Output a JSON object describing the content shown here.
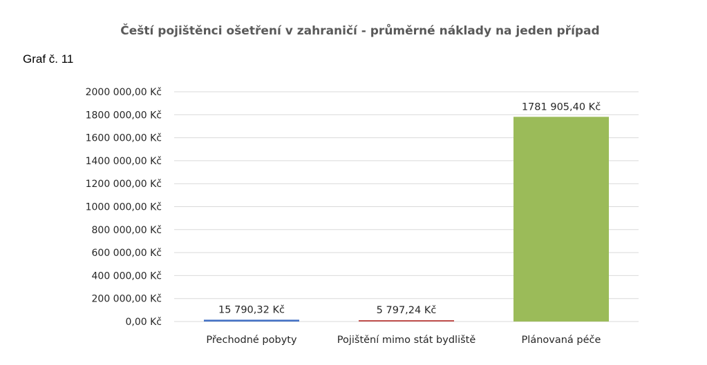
{
  "header": {
    "graf_label": "Graf č. 11"
  },
  "chart_data": {
    "type": "bar",
    "title": "Čeští pojištěnci ošetření v zahraničí - průměrné náklady na jeden případ",
    "xlabel": "",
    "ylabel": "",
    "ylim": [
      0,
      2000000
    ],
    "y_ticks": [
      "0,00 Kč",
      "200 000,00 Kč",
      "400 000,00 Kč",
      "600 000,00 Kč",
      "800 000,00 Kč",
      "1000 000,00 Kč",
      "1200 000,00 Kč",
      "1400 000,00 Kč",
      "1600 000,00 Kč",
      "1800 000,00 Kč",
      "2000 000,00 Kč"
    ],
    "categories": [
      "Přechodné pobyty",
      "Pojištění mimo stát bydliště",
      "Plánovaná péče"
    ],
    "values": [
      15790.32,
      5797.24,
      1781905.4
    ],
    "data_labels": [
      "15 790,32 Kč",
      "5 797,24 Kč",
      "1781 905,40 Kč"
    ],
    "colors": [
      "#4472c4",
      "#c0504d",
      "#9bbb59"
    ],
    "grid": true,
    "legend": "none"
  }
}
